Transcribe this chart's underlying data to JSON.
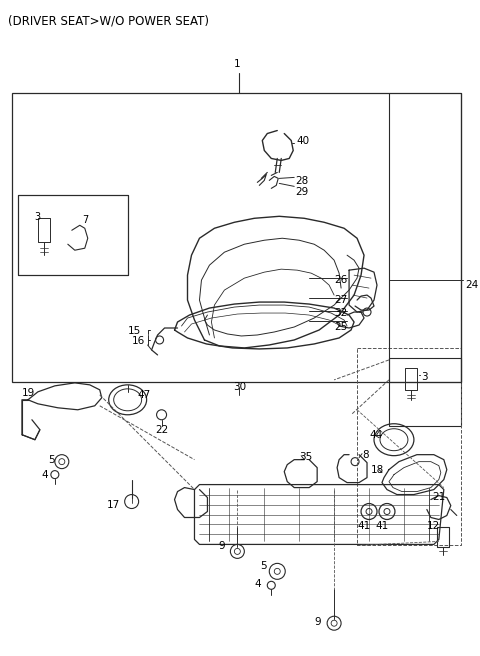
{
  "title": "(DRIVER SEAT>W/O POWER SEAT)",
  "bg_color": "#ffffff",
  "lc": "#2a2a2a",
  "tc": "#000000",
  "fig_width": 4.8,
  "fig_height": 6.56,
  "dpi": 100
}
